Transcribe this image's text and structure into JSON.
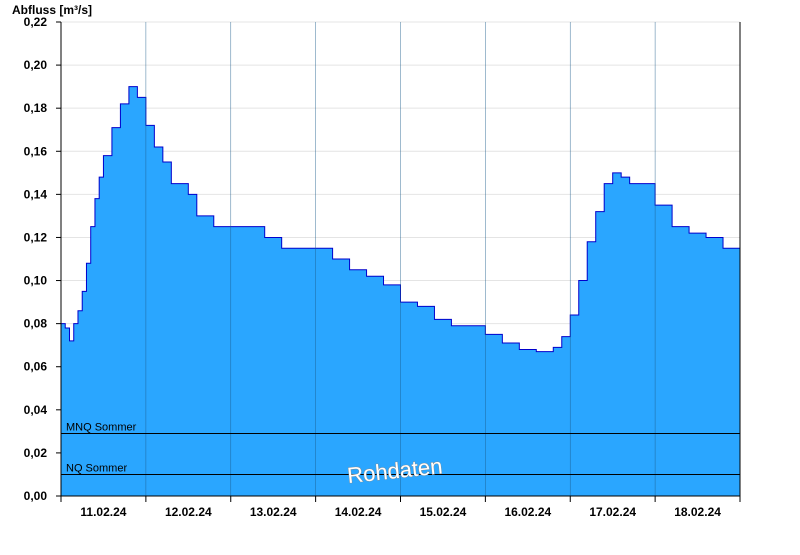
{
  "chart_data": {
    "type": "area",
    "ylabel": "Abfluss [m³/s]",
    "ylim": [
      0,
      0.22
    ],
    "yticks": [
      "0,00",
      "0,02",
      "0,04",
      "0,06",
      "0,08",
      "0,10",
      "0,12",
      "0,14",
      "0,16",
      "0,18",
      "0,20",
      "0,22"
    ],
    "ytick_values": [
      0,
      0.02,
      0.04,
      0.06,
      0.08,
      0.1,
      0.12,
      0.14,
      0.16,
      0.18,
      0.2,
      0.22
    ],
    "xlim": [
      0,
      8
    ],
    "xticks": [
      "11.02.24",
      "12.02.24",
      "13.02.24",
      "14.02.24",
      "15.02.24",
      "16.02.24",
      "17.02.24",
      "18.02.24"
    ],
    "grid": "horizontal",
    "colors": {
      "fill": "#2aa6ff",
      "line": "#0000cc",
      "ref": "#000000",
      "grid": "#e4e4e4"
    },
    "reference_lines": [
      {
        "name": "MNQ Sommer",
        "value": 0.029
      },
      {
        "name": "NQ Sommer",
        "value": 0.01
      }
    ],
    "watermark": "Rohdaten",
    "series": [
      {
        "x": [
          0,
          0.05,
          0.1,
          0.15,
          0.2,
          0.25,
          0.3,
          0.35,
          0.4,
          0.45,
          0.5,
          0.6,
          0.7,
          0.8,
          0.9,
          1.0,
          1.1,
          1.2,
          1.3,
          1.4,
          1.5,
          1.6,
          1.8,
          2.0,
          2.2,
          2.4,
          2.6,
          2.8,
          3.0,
          3.2,
          3.4,
          3.6,
          3.8,
          4.0,
          4.2,
          4.4,
          4.6,
          4.8,
          5.0,
          5.2,
          5.4,
          5.6,
          5.8,
          5.9,
          6.0,
          6.1,
          6.2,
          6.3,
          6.4,
          6.5,
          6.6,
          6.7,
          6.8,
          6.9,
          7.0,
          7.2,
          7.4,
          7.6,
          7.8,
          8.0
        ],
        "y": [
          0.08,
          0.078,
          0.072,
          0.08,
          0.086,
          0.095,
          0.108,
          0.125,
          0.138,
          0.148,
          0.158,
          0.171,
          0.182,
          0.19,
          0.185,
          0.172,
          0.162,
          0.155,
          0.145,
          0.145,
          0.14,
          0.13,
          0.125,
          0.125,
          0.125,
          0.12,
          0.115,
          0.115,
          0.115,
          0.11,
          0.105,
          0.102,
          0.098,
          0.09,
          0.088,
          0.082,
          0.079,
          0.079,
          0.075,
          0.071,
          0.068,
          0.067,
          0.069,
          0.074,
          0.084,
          0.1,
          0.118,
          0.132,
          0.145,
          0.15,
          0.148,
          0.145,
          0.145,
          0.145,
          0.135,
          0.125,
          0.122,
          0.12,
          0.115,
          0.115
        ]
      }
    ]
  }
}
